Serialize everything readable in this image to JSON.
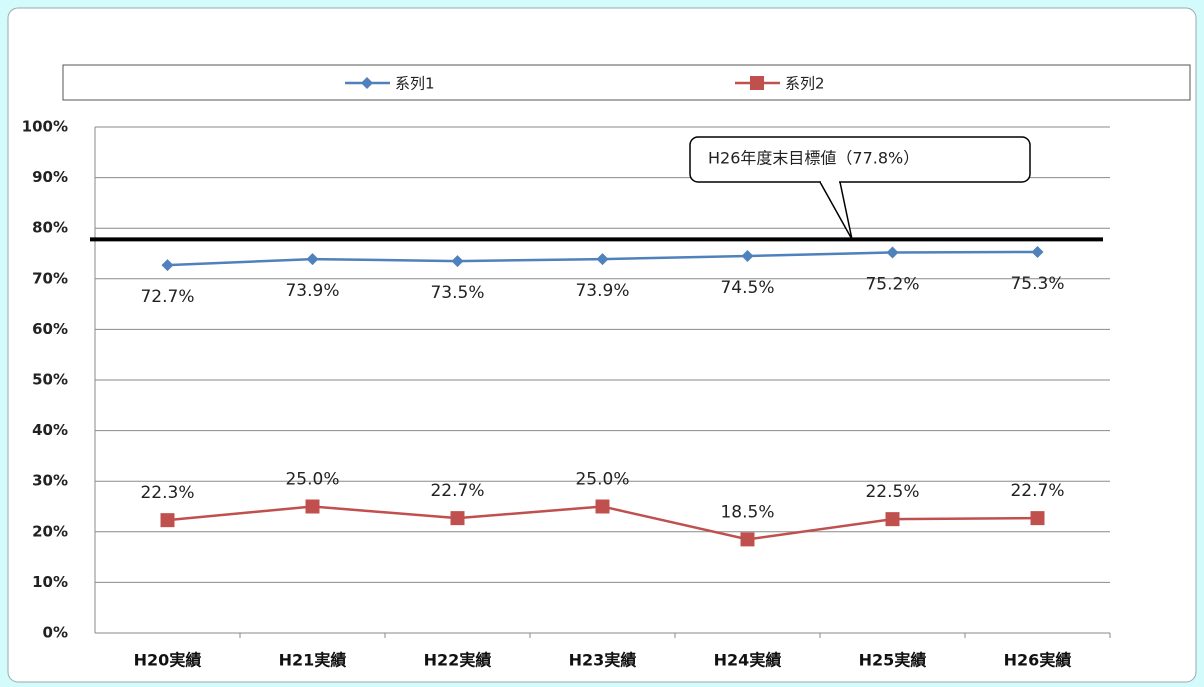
{
  "chart_data": {
    "type": "line",
    "categories": [
      "H20実績",
      "H21実績",
      "H22実績",
      "H23実績",
      "H24実績",
      "H25実績",
      "H26実績"
    ],
    "series": [
      {
        "name": "系列1",
        "color": "#4f81bd",
        "marker": "diamond",
        "values": [
          72.7,
          73.9,
          73.5,
          73.9,
          74.5,
          75.2,
          75.3
        ],
        "value_labels": [
          "72.7%",
          "73.9%",
          "73.5%",
          "73.9%",
          "74.5%",
          "75.2%",
          "75.3%"
        ]
      },
      {
        "name": "系列2",
        "color": "#c0504d",
        "marker": "square",
        "values": [
          22.3,
          25.0,
          22.7,
          25.0,
          18.5,
          22.5,
          22.7
        ],
        "value_labels": [
          "22.3%",
          "25.0%",
          "22.7%",
          "25.0%",
          "18.5%",
          "22.5%",
          "22.7%"
        ]
      }
    ],
    "target": {
      "value": 77.8,
      "label": "H26年度末目標値（77.8%）"
    },
    "ylim": [
      0,
      100
    ],
    "yticks": [
      {
        "value": 0,
        "label": "0%"
      },
      {
        "value": 10,
        "label": "10%"
      },
      {
        "value": 20,
        "label": "20%"
      },
      {
        "value": 30,
        "label": "30%"
      },
      {
        "value": 40,
        "label": "40%"
      },
      {
        "value": 50,
        "label": "50%"
      },
      {
        "value": 60,
        "label": "60%"
      },
      {
        "value": 70,
        "label": "70%"
      },
      {
        "value": 80,
        "label": "80%"
      },
      {
        "value": 90,
        "label": "90%"
      },
      {
        "value": 100,
        "label": "100%"
      }
    ],
    "grid": true,
    "legend": "top"
  }
}
